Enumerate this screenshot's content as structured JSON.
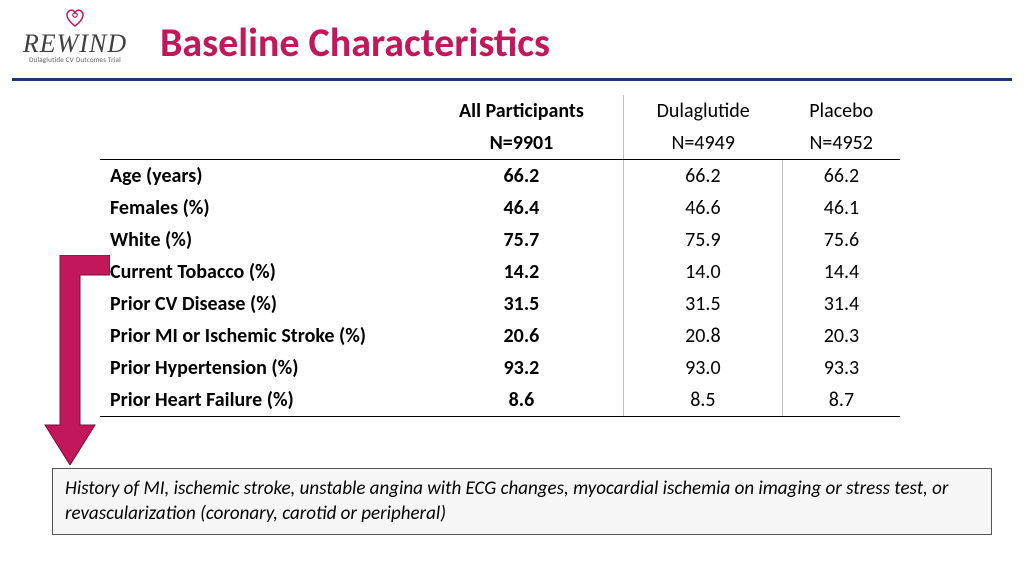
{
  "logo": {
    "word": "REWIND",
    "sub": "Dulaglutide CV Outcomes Trial"
  },
  "title": "Baseline Characteristics",
  "colors": {
    "accent": "#c2185b",
    "rule": "#1f3a6e",
    "arrow_fill": "#c2185b",
    "arrow_stroke": "#7a0f3a",
    "footnote_bg": "#f6f6f6"
  },
  "table": {
    "header": {
      "col1": "",
      "all": "All Participants",
      "all_n": "N=9901",
      "drug": "Dulaglutide",
      "drug_n": "N=4949",
      "placebo": "Placebo",
      "placebo_n": "N=4952"
    },
    "rows": [
      {
        "label": "Age (years)",
        "all": "66.2",
        "drug": "66.2",
        "placebo": "66.2"
      },
      {
        "label": "Females (%)",
        "all": "46.4",
        "drug": "46.6",
        "placebo": "46.1"
      },
      {
        "label": "White (%)",
        "all": "75.7",
        "drug": "75.9",
        "placebo": "75.6"
      },
      {
        "label": "Current Tobacco (%)",
        "all": "14.2",
        "drug": "14.0",
        "placebo": "14.4"
      },
      {
        "label": "Prior CV Disease (%)",
        "all": "31.5",
        "drug": "31.5",
        "placebo": "31.4"
      },
      {
        "label": "Prior MI or Ischemic Stroke (%)",
        "all": "20.6",
        "drug": "20.8",
        "placebo": "20.3"
      },
      {
        "label": "Prior Hypertension (%)",
        "all": "93.2",
        "drug": "93.0",
        "placebo": "93.3"
      },
      {
        "label": "Prior Heart Failure (%)",
        "all": "8.6",
        "drug": "8.5",
        "placebo": "8.7"
      }
    ]
  },
  "footnote": "History of MI, ischemic stroke, unstable angina with ECG changes, myocardial ischemia on imaging or stress test, or revascularization (coronary, carotid or peripheral)"
}
